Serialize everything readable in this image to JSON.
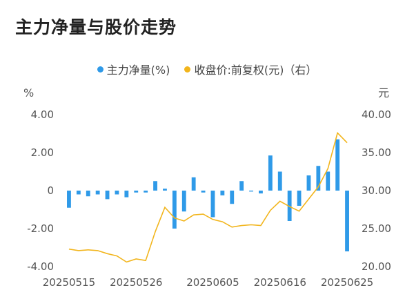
{
  "title": "主力净量与股价走势",
  "chart_data": {
    "type": "bar+line",
    "legend_position": "top-center",
    "grid": false,
    "left_axis": {
      "unit": "%",
      "ylim": [
        -4,
        4
      ],
      "ticks": [
        "4.00",
        "2.00",
        "0",
        "-2.00",
        "-4.00"
      ]
    },
    "right_axis": {
      "unit": "元",
      "ylim": [
        20,
        40
      ],
      "ticks": [
        "40.00",
        "35.00",
        "30.00",
        "25.00",
        "20.00"
      ]
    },
    "x_tick_labels": [
      "20250515",
      "20250526",
      "20250605",
      "20250616",
      "20250625"
    ],
    "series": [
      {
        "name": "主力净量(%)",
        "type": "bar",
        "axis": "left",
        "color": "#2f9ae8",
        "values": [
          -0.9,
          -0.2,
          -0.3,
          -0.2,
          -0.45,
          -0.2,
          -0.35,
          -0.1,
          -0.1,
          0.5,
          0.1,
          -2.0,
          -1.1,
          0.7,
          -0.1,
          -1.4,
          -0.25,
          -0.7,
          0.5,
          -0.05,
          -0.15,
          1.85,
          1.0,
          -1.6,
          -0.8,
          0.8,
          1.3,
          1.0,
          2.7,
          -3.2
        ]
      },
      {
        "name": "收盘价:前复权(元)（右）",
        "type": "line",
        "axis": "right",
        "color": "#f2b51c",
        "values": [
          22.3,
          22.1,
          22.2,
          22.1,
          21.7,
          21.4,
          20.6,
          21.0,
          20.8,
          24.6,
          27.8,
          26.4,
          26.0,
          26.8,
          26.9,
          26.2,
          25.9,
          25.2,
          25.4,
          25.5,
          25.4,
          27.4,
          28.6,
          27.9,
          27.3,
          28.9,
          30.5,
          32.9,
          37.6,
          36.3
        ]
      }
    ]
  }
}
